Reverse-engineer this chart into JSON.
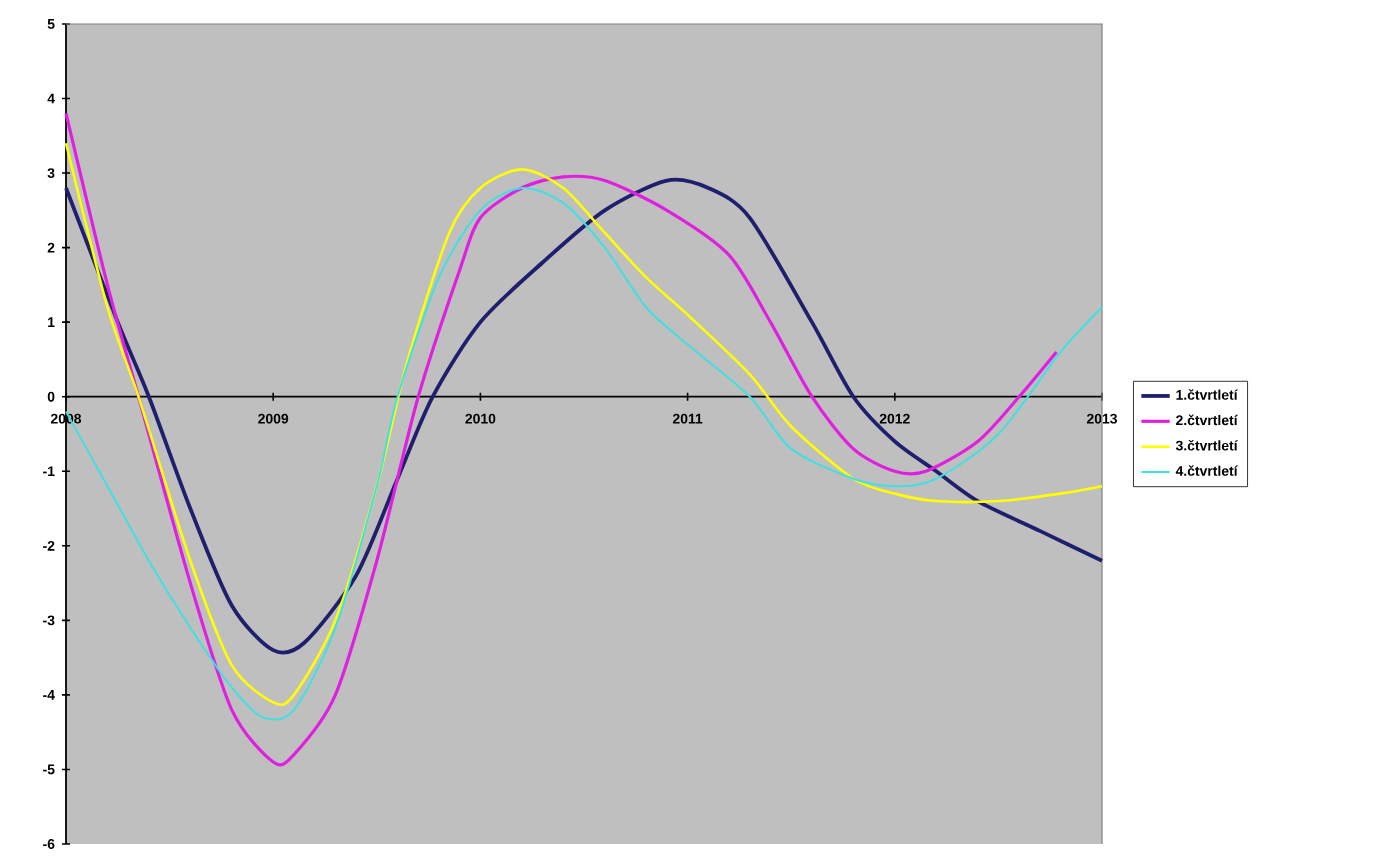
{
  "chart_data": {
    "type": "line",
    "xlim": [
      2008,
      2013
    ],
    "ylim": [
      -6,
      5
    ],
    "xticks": [
      2008,
      2009,
      2010,
      2011,
      2012,
      2013
    ],
    "yticks": [
      -6,
      -5,
      -4,
      -3,
      -2,
      -1,
      0,
      1,
      2,
      3,
      4,
      5
    ],
    "grid": false,
    "legend": "right",
    "marker": "none",
    "line_style": "solid",
    "series": [
      {
        "name": "1.čtvrtletí",
        "color": "#1f1f6e",
        "x": [
          2008,
          2008.25,
          2008.4,
          2008.6,
          2008.8,
          2009,
          2009.15,
          2009.4,
          2009.6,
          2009.77,
          2010,
          2010.3,
          2010.6,
          2010.9,
          2011.1,
          2011.3,
          2011.6,
          2011.8,
          2012,
          2012.2,
          2012.4,
          2012.7,
          2013
        ],
        "values": [
          2.8,
          1.0,
          0,
          -1.5,
          -2.8,
          -3.4,
          -3.3,
          -2.4,
          -1.1,
          0,
          1.0,
          1.8,
          2.5,
          2.9,
          2.8,
          2.4,
          1.0,
          0,
          -0.6,
          -1.0,
          -1.4,
          -1.8,
          -2.2
        ]
      },
      {
        "name": "2.čtvrtletí",
        "color": "#e020e0",
        "x": [
          2008,
          2008.2,
          2008.35,
          2008.6,
          2008.8,
          2009,
          2009.1,
          2009.3,
          2009.5,
          2009.7,
          2009.9,
          2010,
          2010.2,
          2010.4,
          2010.6,
          2010.9,
          2011.2,
          2011.4,
          2011.6,
          2011.8,
          2012,
          2012.15,
          2012.4,
          2012.6,
          2012.78
        ],
        "values": [
          3.8,
          1.5,
          0,
          -2.5,
          -4.2,
          -4.9,
          -4.8,
          -4.0,
          -2.2,
          0,
          1.7,
          2.4,
          2.8,
          2.95,
          2.9,
          2.5,
          1.9,
          1.0,
          0,
          -0.7,
          -1.0,
          -1.0,
          -0.6,
          0,
          0.6
        ]
      },
      {
        "name": "3.čtvrtletí",
        "color": "#ffff00",
        "x": [
          2008,
          2008.2,
          2008.35,
          2008.6,
          2008.8,
          2009,
          2009.1,
          2009.3,
          2009.5,
          2009.65,
          2009.85,
          2010,
          2010.2,
          2010.4,
          2010.6,
          2010.8,
          2011,
          2011.3,
          2011.5,
          2011.8,
          2012,
          2012.2,
          2012.5,
          2012.8,
          2013
        ],
        "values": [
          3.4,
          1.2,
          0,
          -2.2,
          -3.6,
          -4.1,
          -4.0,
          -3.0,
          -1.2,
          0.5,
          2.2,
          2.8,
          3.05,
          2.8,
          2.2,
          1.6,
          1.1,
          0.3,
          -0.4,
          -1.1,
          -1.3,
          -1.4,
          -1.4,
          -1.3,
          -1.2
        ]
      },
      {
        "name": "4.čtvrtletí",
        "color": "#40e0e0",
        "x": [
          2008,
          2008.2,
          2008.4,
          2008.6,
          2008.8,
          2008.95,
          2009.1,
          2009.3,
          2009.5,
          2009.6,
          2009.8,
          2010,
          2010.2,
          2010.4,
          2010.6,
          2010.8,
          2011,
          2011.3,
          2011.5,
          2011.8,
          2012,
          2012.2,
          2012.5,
          2012.8,
          2013
        ],
        "values": [
          -0.2,
          -1.2,
          -2.2,
          -3.1,
          -3.9,
          -4.3,
          -4.2,
          -3.1,
          -1.2,
          0,
          1.6,
          2.5,
          2.8,
          2.6,
          2.0,
          1.2,
          0.7,
          0,
          -0.7,
          -1.1,
          -1.2,
          -1.1,
          -0.5,
          0.6,
          1.2
        ]
      }
    ]
  }
}
